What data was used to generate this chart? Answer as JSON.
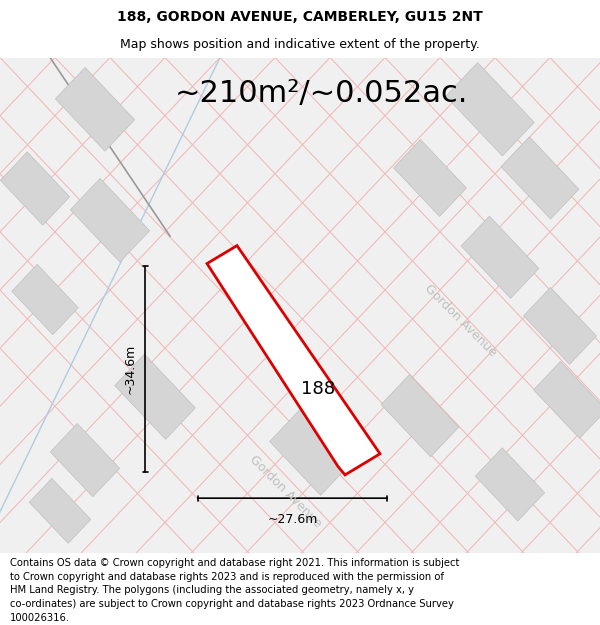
{
  "title": "188, GORDON AVENUE, CAMBERLEY, GU15 2NT",
  "subtitle": "Map shows position and indicative extent of the property.",
  "area_text": "~210m²/~0.052ac.",
  "label_188": "188",
  "dim_height": "~34.6m",
  "dim_width": "~27.6m",
  "gordon_avenue_1": "Gordon Avenue",
  "gordon_avenue_2": "Gordon Avenue",
  "footer": "Contains OS data © Crown copyright and database right 2021. This information is subject to Crown copyright and database rights 2023 and is reproduced with the permission of HM Land Registry. The polygons (including the associated geometry, namely x, y co-ordinates) are subject to Crown copyright and database rights 2023 Ordnance Survey 100026316.",
  "map_bg": "#f0f0f0",
  "plot_outline_color": "#dd0000",
  "road_pink": "#f2b8b8",
  "road_blue": "#b0cce0",
  "road_dark": "#555555",
  "building_fill": "#d5d5d5",
  "building_edge": "#c0c0c0",
  "title_fontsize": 10,
  "subtitle_fontsize": 9,
  "area_fontsize": 22,
  "label_fontsize": 13,
  "dim_fontsize": 9,
  "footer_fontsize": 7.2,
  "ga_fontsize": 9
}
